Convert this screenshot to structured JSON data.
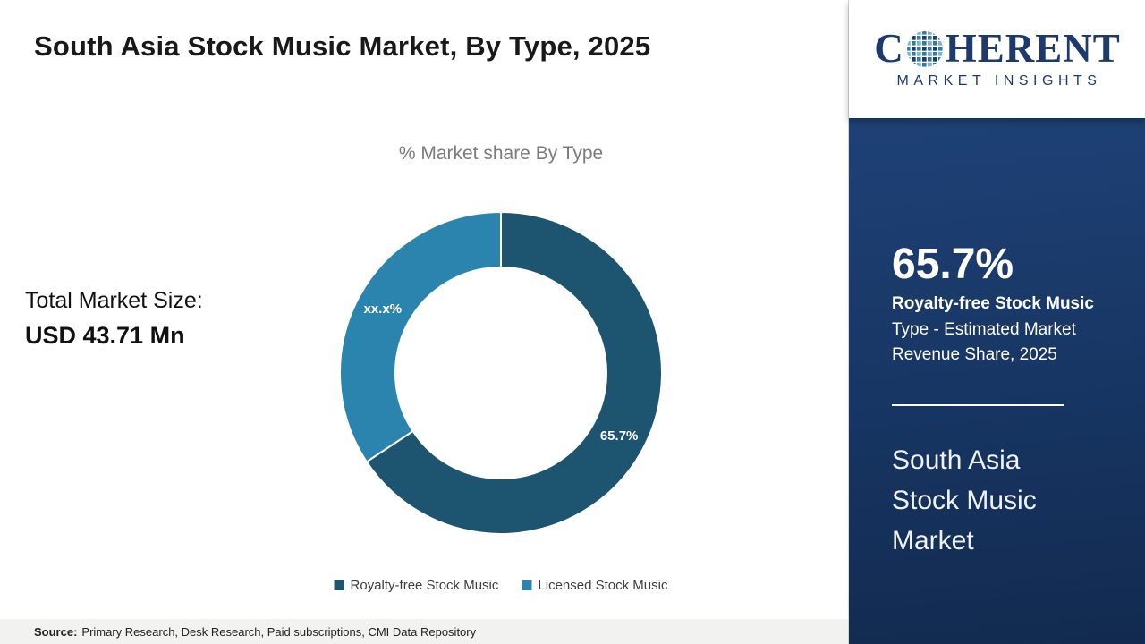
{
  "header": {
    "title": "South Asia Stock Music Market, By Type, 2025"
  },
  "chart_data": {
    "type": "pie",
    "subtype": "donut",
    "title": "% Market share By Type",
    "legend_position": "bottom",
    "series": [
      {
        "name": "Royalty-free Stock Music",
        "value": 65.7,
        "label": "65.7%",
        "color": "#1d5470"
      },
      {
        "name": "Licensed Stock Music",
        "value": 34.3,
        "label": "xx.x%",
        "color": "#2b84ad"
      }
    ]
  },
  "market_size": {
    "label": "Total Market Size:",
    "value": "USD 43.71 Mn"
  },
  "footer": {
    "source_prefix": "Source:",
    "source_text": "Primary Research, Desk Research, Paid subscriptions, CMI Data Repository"
  },
  "sidebar": {
    "logo": {
      "prefix": "C",
      "suffix": "HERENT",
      "tagline": "MARKET INSIGHTS"
    },
    "stat_value": "65.7%",
    "stat_desc_bold": "Royalty-free Stock Music",
    "stat_desc_rest": "Type - Estimated Market Revenue Share, 2025",
    "market_name": "South Asia Stock Music Market"
  }
}
